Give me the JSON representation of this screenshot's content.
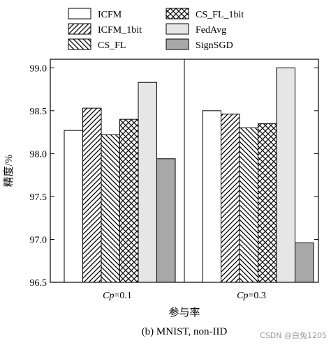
{
  "chart_data": {
    "type": "bar",
    "categories": [
      "Cp=0.1",
      "Cp=0.3"
    ],
    "category_parts": [
      {
        "italic": "Cp",
        "rest": "=0.1"
      },
      {
        "italic": "Cp",
        "rest": "=0.3"
      }
    ],
    "series": [
      {
        "name": "ICFM",
        "values": [
          98.27,
          98.5
        ],
        "fill": "white"
      },
      {
        "name": "ICFM_1bit",
        "values": [
          98.53,
          98.46
        ],
        "fill": "diag-right"
      },
      {
        "name": "CS_FL",
        "values": [
          98.22,
          98.3
        ],
        "fill": "diag-left"
      },
      {
        "name": "CS_FL_1bit",
        "values": [
          98.4,
          98.35
        ],
        "fill": "crosshatch"
      },
      {
        "name": "FedAvg",
        "values": [
          98.83,
          99.0
        ],
        "fill": "light-gray"
      },
      {
        "name": "SignSGD",
        "values": [
          97.94,
          96.96
        ],
        "fill": "dark-gray"
      }
    ],
    "ylim": [
      96.5,
      99.1
    ],
    "yticks": [
      "96.5",
      "97.0",
      "97.5",
      "98.0",
      "98.5",
      "99.0"
    ],
    "ylabel": "精度/%",
    "xlabel": "参与率",
    "legend_placement": "top",
    "colors": {
      "light_gray": "#e6e6e6",
      "dark_gray": "#a8a8a8",
      "stroke": "#000000"
    }
  },
  "caption": "(b)  MNIST, non-IID",
  "watermark": "CSDN @白兔1205"
}
